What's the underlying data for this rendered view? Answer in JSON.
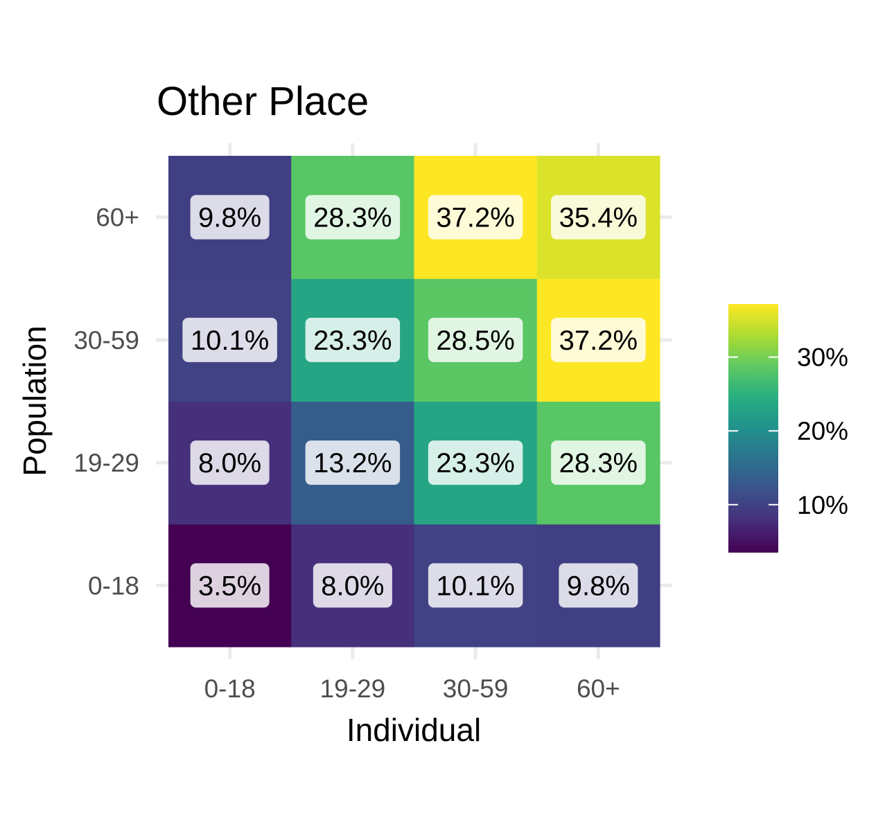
{
  "chart_data": {
    "type": "heatmap",
    "title": "Other Place",
    "xlabel": "Individual",
    "ylabel": "Population",
    "x_categories": [
      "0-18",
      "19-29",
      "30-59",
      "60+"
    ],
    "y_categories": [
      "0-18",
      "19-29",
      "30-59",
      "60+"
    ],
    "values": [
      [
        3.5,
        8.0,
        10.1,
        9.8
      ],
      [
        8.0,
        13.2,
        23.3,
        28.3
      ],
      [
        10.1,
        23.3,
        28.5,
        37.2
      ],
      [
        9.8,
        28.3,
        37.2,
        35.4
      ]
    ],
    "labels": [
      [
        "3.5%",
        "8.0%",
        "10.1%",
        "9.8%"
      ],
      [
        "8.0%",
        "13.2%",
        "23.3%",
        "28.3%"
      ],
      [
        "10.1%",
        "23.3%",
        "28.5%",
        "37.2%"
      ],
      [
        "9.8%",
        "28.3%",
        "37.2%",
        "35.4%"
      ]
    ],
    "color_scale": "viridis",
    "color_range": [
      3.5,
      37.2
    ],
    "legend": {
      "position": "right",
      "ticks": [
        {
          "value": 10,
          "label": "10%"
        },
        {
          "value": 20,
          "label": "20%"
        },
        {
          "value": 30,
          "label": "30%"
        }
      ]
    },
    "grid": true
  }
}
